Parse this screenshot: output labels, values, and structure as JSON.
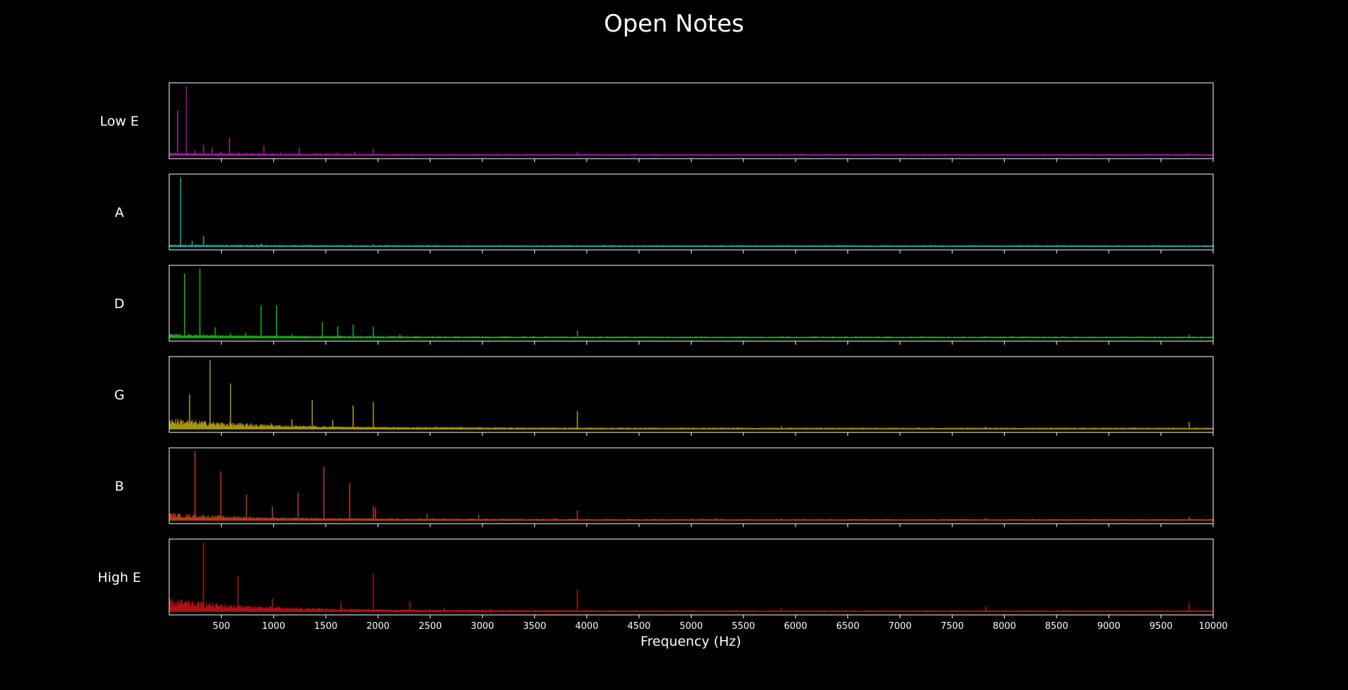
{
  "chart_data": {
    "type": "line",
    "title": "Open Notes",
    "xlabel": "Frequency (Hz)",
    "ylabel": "",
    "xlim": [
      0,
      10000
    ],
    "x_ticks": [
      500,
      1000,
      1500,
      2000,
      2500,
      3000,
      3500,
      4000,
      4500,
      5000,
      5500,
      6000,
      6500,
      7000,
      7500,
      8000,
      8500,
      9000,
      9500,
      10000
    ],
    "x_tick_labels": [
      "500",
      "1000",
      "1500",
      "2000",
      "2500",
      "3000",
      "3500",
      "4000",
      "4500",
      "5000",
      "5500",
      "6000",
      "6500",
      "7000",
      "7500",
      "8000",
      "8500",
      "9000",
      "9500",
      "10000"
    ],
    "grid": false,
    "legend": "none",
    "background": "#000000",
    "frame_color": "#ffffff",
    "series": [
      {
        "name": "Low E",
        "color": "#a414a4",
        "noise_level": 0.02,
        "peaks": [
          [
            82,
            0.65
          ],
          [
            165,
            1.0
          ],
          [
            247,
            0.07
          ],
          [
            330,
            0.15
          ],
          [
            412,
            0.11
          ],
          [
            495,
            0.05
          ],
          [
            577,
            0.25
          ],
          [
            660,
            0.04
          ],
          [
            742,
            0.03
          ],
          [
            907,
            0.14
          ],
          [
            1072,
            0.04
          ],
          [
            1245,
            0.11
          ],
          [
            1420,
            0.03
          ],
          [
            1600,
            0.04
          ],
          [
            1775,
            0.05
          ],
          [
            1955,
            0.09
          ],
          [
            3910,
            0.05
          ],
          [
            5865,
            0.02
          ],
          [
            9770,
            0.03
          ]
        ]
      },
      {
        "name": "A",
        "color": "#1aa6a6",
        "noise_level": 0.01,
        "peaks": [
          [
            110,
            1.0
          ],
          [
            220,
            0.08
          ],
          [
            330,
            0.15
          ],
          [
            550,
            0.02
          ],
          [
            880,
            0.04
          ],
          [
            1210,
            0.02
          ],
          [
            1955,
            0.03
          ],
          [
            3910,
            0.02
          ]
        ]
      },
      {
        "name": "D",
        "color": "#18a818",
        "noise_level": 0.05,
        "peaks": [
          [
            147,
            0.93
          ],
          [
            294,
            1.0
          ],
          [
            440,
            0.15
          ],
          [
            587,
            0.07
          ],
          [
            734,
            0.07
          ],
          [
            880,
            0.47
          ],
          [
            1028,
            0.47
          ],
          [
            1175,
            0.05
          ],
          [
            1468,
            0.23
          ],
          [
            1615,
            0.16
          ],
          [
            1762,
            0.19
          ],
          [
            1955,
            0.16
          ],
          [
            2210,
            0.05
          ],
          [
            2350,
            0.02
          ],
          [
            3910,
            0.1
          ],
          [
            5865,
            0.02
          ],
          [
            7820,
            0.02
          ],
          [
            9770,
            0.04
          ]
        ]
      },
      {
        "name": "G",
        "color": "#a89414",
        "noise_level": 0.16,
        "peaks": [
          [
            196,
            0.5
          ],
          [
            392,
            1.0
          ],
          [
            588,
            0.66
          ],
          [
            784,
            0.08
          ],
          [
            980,
            0.08
          ],
          [
            1175,
            0.14
          ],
          [
            1370,
            0.42
          ],
          [
            1566,
            0.13
          ],
          [
            1762,
            0.34
          ],
          [
            1955,
            0.39
          ],
          [
            2150,
            0.03
          ],
          [
            2550,
            0.04
          ],
          [
            3910,
            0.26
          ],
          [
            5865,
            0.04
          ],
          [
            7820,
            0.03
          ],
          [
            9770,
            0.1
          ]
        ]
      },
      {
        "name": "B",
        "color": "#b83a14",
        "noise_level": 0.1,
        "peaks": [
          [
            247,
            1.0
          ],
          [
            494,
            0.71
          ],
          [
            741,
            0.37
          ],
          [
            988,
            0.2
          ],
          [
            1235,
            0.4
          ],
          [
            1482,
            0.78
          ],
          [
            1729,
            0.54
          ],
          [
            1955,
            0.2
          ],
          [
            1976,
            0.18
          ],
          [
            2470,
            0.09
          ],
          [
            2965,
            0.08
          ],
          [
            3212,
            0.02
          ],
          [
            3700,
            0.03
          ],
          [
            3910,
            0.14
          ],
          [
            4200,
            0.02
          ],
          [
            5240,
            0.03
          ],
          [
            5865,
            0.03
          ],
          [
            7820,
            0.04
          ],
          [
            9770,
            0.05
          ]
        ]
      },
      {
        "name": "High E",
        "color": "#b01010",
        "noise_level": 0.19,
        "peaks": [
          [
            330,
            1.0
          ],
          [
            659,
            0.52
          ],
          [
            988,
            0.19
          ],
          [
            1318,
            0.05
          ],
          [
            1647,
            0.14
          ],
          [
            1955,
            0.55
          ],
          [
            2306,
            0.14
          ],
          [
            2636,
            0.06
          ],
          [
            3910,
            0.32
          ],
          [
            5865,
            0.05
          ],
          [
            7820,
            0.07
          ],
          [
            9770,
            0.13
          ]
        ]
      }
    ]
  }
}
